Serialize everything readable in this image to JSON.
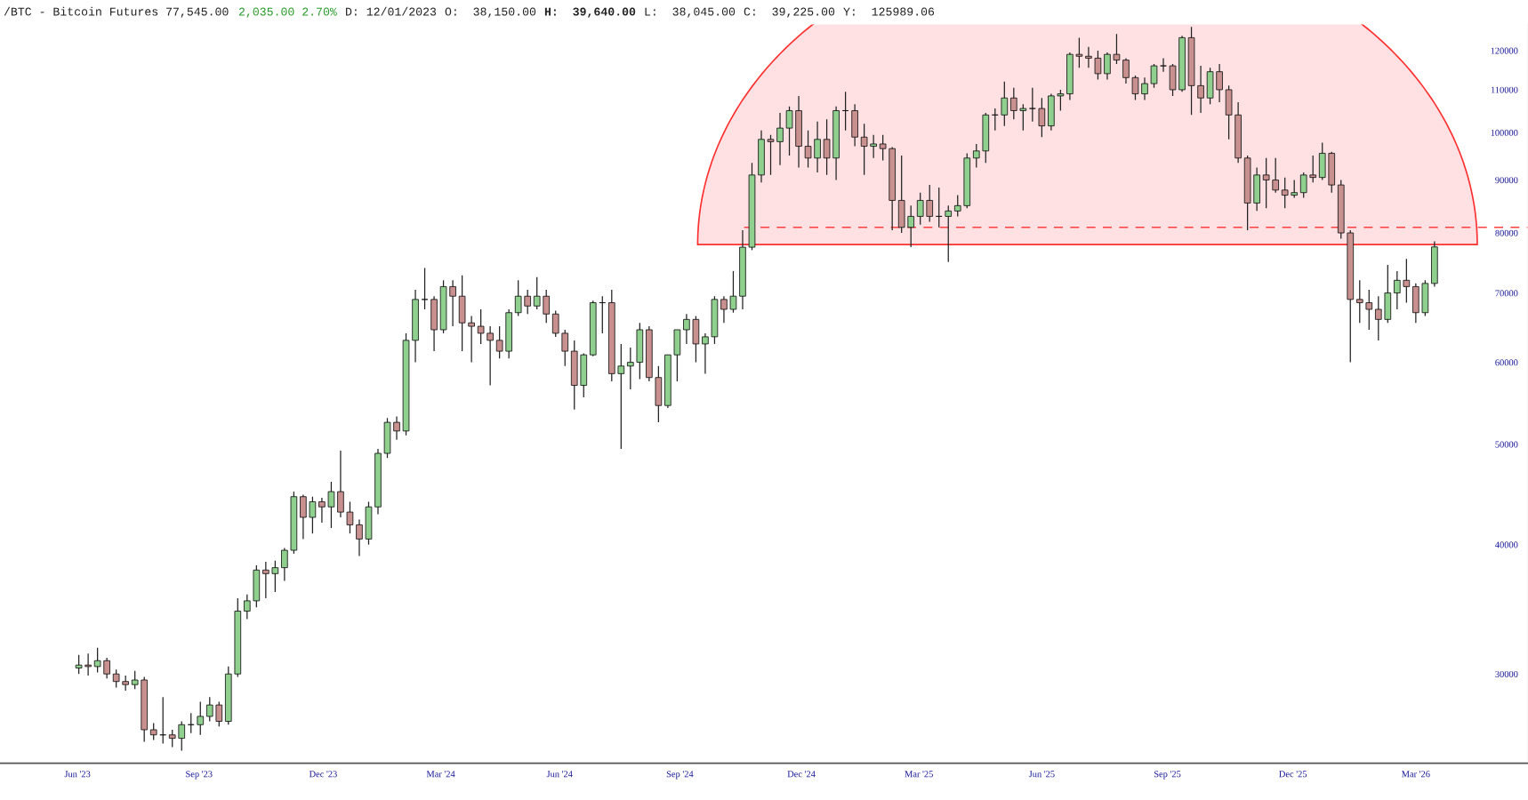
{
  "chart_data": {
    "type": "candlestick",
    "title": "/BTC - Bitcoin Futures 77,545.00",
    "annotations": [
      "2,035.00 2.70%",
      "D: 12/01/2023",
      "O:  38,150.00",
      "H:  39,640.00",
      "L:  38,045.00",
      "C:  39,225.00",
      "Y:  125989.06"
    ],
    "x": [
      "2023-06-26",
      "2023-07-03",
      "2023-07-10",
      "2023-07-17",
      "2023-07-24",
      "2023-07-31",
      "2023-08-07",
      "2023-08-14",
      "2023-08-21",
      "2023-08-28",
      "2023-09-04",
      "2023-09-11",
      "2023-09-18",
      "2023-09-25",
      "2023-10-02",
      "2023-10-09",
      "2023-10-16",
      "2023-10-23",
      "2023-10-30",
      "2023-11-06",
      "2023-11-13",
      "2023-11-20",
      "2023-11-27",
      "2023-12-04",
      "2023-12-11",
      "2023-12-18",
      "2023-12-25",
      "2024-01-01",
      "2024-01-08",
      "2024-01-15",
      "2024-01-22",
      "2024-01-29",
      "2024-02-05",
      "2024-02-12",
      "2024-02-19",
      "2024-02-26",
      "2024-03-04",
      "2024-03-11",
      "2024-03-18",
      "2024-03-25",
      "2024-04-01",
      "2024-04-08",
      "2024-04-15",
      "2024-04-22",
      "2024-04-29",
      "2024-05-06",
      "2024-05-13",
      "2024-05-20",
      "2024-05-27",
      "2024-06-03",
      "2024-06-10",
      "2024-06-17",
      "2024-06-24",
      "2024-07-01",
      "2024-07-08",
      "2024-07-15",
      "2024-07-22",
      "2024-07-29",
      "2024-08-05",
      "2024-08-12",
      "2024-08-19",
      "2024-08-26",
      "2024-09-02",
      "2024-09-09",
      "2024-09-16",
      "2024-09-23",
      "2024-09-30",
      "2024-10-07",
      "2024-10-14",
      "2024-10-21",
      "2024-10-28",
      "2024-11-04",
      "2024-11-11",
      "2024-11-18",
      "2024-11-25",
      "2024-12-02",
      "2024-12-09",
      "2024-12-16",
      "2024-12-23",
      "2024-12-30",
      "2025-01-06",
      "2025-01-13",
      "2025-01-20",
      "2025-01-27",
      "2025-02-03",
      "2025-02-10",
      "2025-02-17",
      "2025-02-24",
      "2025-03-03",
      "2025-03-10",
      "2025-03-17",
      "2025-03-24",
      "2025-03-31",
      "2025-04-07",
      "2025-04-14",
      "2025-04-21",
      "2025-04-28",
      "2025-05-05",
      "2025-05-12",
      "2025-05-19",
      "2025-05-26",
      "2025-06-02",
      "2025-06-09",
      "2025-06-16",
      "2025-06-23",
      "2025-06-30",
      "2025-07-07",
      "2025-07-14",
      "2025-07-21",
      "2025-07-28",
      "2025-08-04",
      "2025-08-11",
      "2025-08-18",
      "2025-08-25",
      "2025-09-01",
      "2025-09-08",
      "2025-09-15",
      "2025-09-22",
      "2025-09-29",
      "2025-10-06",
      "2025-10-13",
      "2025-10-20",
      "2025-10-27",
      "2025-11-03",
      "2025-11-10",
      "2025-11-17",
      "2025-11-24",
      "2025-12-01",
      "2025-12-08",
      "2025-12-15",
      "2025-12-22",
      "2025-12-29",
      "2026-01-05",
      "2026-01-12",
      "2026-01-19",
      "2026-01-26",
      "2026-02-02",
      "2026-02-09",
      "2026-02-16",
      "2026-02-23",
      "2026-03-02",
      "2026-03-09",
      "2026-03-16",
      "2026-03-23",
      "2026-03-30",
      "2026-04-06"
    ],
    "ohlc": [
      [
        30400,
        31300,
        30000,
        30600
      ],
      [
        30600,
        31400,
        29900,
        30500
      ],
      [
        30500,
        31800,
        30100,
        30900
      ],
      [
        30900,
        31100,
        29700,
        30000
      ],
      [
        30000,
        30300,
        29100,
        29500
      ],
      [
        29500,
        29900,
        28900,
        29300
      ],
      [
        29300,
        30200,
        29000,
        29600
      ],
      [
        29600,
        29800,
        25800,
        26500
      ],
      [
        26500,
        26900,
        25900,
        26200
      ],
      [
        26200,
        28500,
        25700,
        26200
      ],
      [
        26200,
        26500,
        25500,
        26000
      ],
      [
        26000,
        27000,
        25300,
        26800
      ],
      [
        26800,
        27500,
        26300,
        26800
      ],
      [
        26800,
        28200,
        26200,
        27300
      ],
      [
        27300,
        28500,
        27000,
        28000
      ],
      [
        28000,
        28200,
        26700,
        27000
      ],
      [
        27000,
        30500,
        26800,
        30000
      ],
      [
        30000,
        35500,
        29800,
        34500
      ],
      [
        34500,
        35800,
        33900,
        35300
      ],
      [
        35300,
        38200,
        34800,
        37800
      ],
      [
        37800,
        38500,
        35500,
        37500
      ],
      [
        37500,
        38600,
        36000,
        38000
      ],
      [
        38000,
        39700,
        36900,
        39500
      ],
      [
        39500,
        45000,
        39200,
        44500
      ],
      [
        44500,
        44700,
        40500,
        42500
      ],
      [
        42500,
        44500,
        41000,
        44000
      ],
      [
        44000,
        44400,
        42000,
        43500
      ],
      [
        43500,
        46000,
        41500,
        45000
      ],
      [
        45000,
        49300,
        42500,
        43000
      ],
      [
        43000,
        44000,
        41000,
        41800
      ],
      [
        41800,
        42300,
        39000,
        40500
      ],
      [
        40500,
        44000,
        40000,
        43500
      ],
      [
        43500,
        49500,
        42800,
        49000
      ],
      [
        49000,
        53000,
        48500,
        52500
      ],
      [
        52500,
        53200,
        50500,
        51500
      ],
      [
        51500,
        64000,
        51000,
        63000
      ],
      [
        63000,
        70500,
        60000,
        69000
      ],
      [
        69000,
        74000,
        67500,
        69000
      ],
      [
        69000,
        69500,
        61500,
        64500
      ],
      [
        64500,
        72000,
        64000,
        71000
      ],
      [
        71000,
        72000,
        65000,
        69500
      ],
      [
        69500,
        72800,
        61500,
        65500
      ],
      [
        65500,
        66500,
        60000,
        65000
      ],
      [
        65000,
        67500,
        62500,
        64000
      ],
      [
        64000,
        65000,
        57000,
        63000
      ],
      [
        63000,
        65000,
        60500,
        61500
      ],
      [
        61500,
        67500,
        60500,
        67000
      ],
      [
        67000,
        72000,
        66500,
        69500
      ],
      [
        69500,
        70500,
        66800,
        68000
      ],
      [
        68000,
        72500,
        67500,
        69500
      ],
      [
        69500,
        70500,
        65500,
        66800
      ],
      [
        66800,
        67300,
        63500,
        64000
      ],
      [
        64000,
        64500,
        59500,
        61500
      ],
      [
        61500,
        63000,
        54000,
        57000
      ],
      [
        57000,
        61200,
        55500,
        61000
      ],
      [
        61000,
        68800,
        60800,
        68500
      ],
      [
        68500,
        69500,
        64000,
        68500
      ],
      [
        68500,
        70500,
        57500,
        58500
      ],
      [
        58500,
        62500,
        49500,
        59500
      ],
      [
        59500,
        62000,
        56500,
        60000
      ],
      [
        60000,
        65500,
        57800,
        64500
      ],
      [
        64500,
        65000,
        57500,
        58000
      ],
      [
        58000,
        59500,
        52500,
        54500
      ],
      [
        54500,
        61000,
        54200,
        61000
      ],
      [
        61000,
        64500,
        57500,
        64500
      ],
      [
        64500,
        66800,
        62500,
        66000
      ],
      [
        66000,
        66500,
        60000,
        62500
      ],
      [
        62500,
        64000,
        58500,
        63500
      ],
      [
        63500,
        69500,
        62500,
        69000
      ],
      [
        69000,
        69500,
        65500,
        67500
      ],
      [
        67500,
        73500,
        67000,
        69500
      ],
      [
        69500,
        80500,
        67500,
        77500
      ],
      [
        77500,
        93500,
        77000,
        91000
      ],
      [
        91000,
        100500,
        89500,
        98500
      ],
      [
        98500,
        99500,
        91000,
        98000
      ],
      [
        98000,
        104500,
        93000,
        101000
      ],
      [
        101000,
        106000,
        95000,
        105000
      ],
      [
        105000,
        108500,
        92500,
        97000
      ],
      [
        97000,
        100500,
        92500,
        94500
      ],
      [
        94500,
        102500,
        91500,
        98500
      ],
      [
        98500,
        103000,
        91000,
        94500
      ],
      [
        94500,
        106000,
        90000,
        105000
      ],
      [
        105000,
        109500,
        100500,
        105000
      ],
      [
        105000,
        106500,
        97000,
        99000
      ],
      [
        99000,
        102000,
        91000,
        97000
      ],
      [
        97000,
        99500,
        94500,
        97500
      ],
      [
        97500,
        99500,
        94000,
        96500
      ],
      [
        96500,
        96800,
        80500,
        86000
      ],
      [
        86000,
        95000,
        80000,
        81000
      ],
      [
        81000,
        85000,
        77500,
        83000
      ],
      [
        83000,
        87500,
        81500,
        86000
      ],
      [
        86000,
        89000,
        82000,
        83000
      ],
      [
        83000,
        88500,
        81000,
        83000
      ],
      [
        83000,
        85000,
        75000,
        84000
      ],
      [
        84000,
        87000,
        83000,
        85000
      ],
      [
        85000,
        95500,
        84500,
        94500
      ],
      [
        94500,
        97500,
        92500,
        96000
      ],
      [
        96000,
        104500,
        93500,
        104000
      ],
      [
        104000,
        105500,
        100500,
        104000
      ],
      [
        104000,
        112000,
        101500,
        108000
      ],
      [
        108000,
        110500,
        103000,
        105000
      ],
      [
        105000,
        106500,
        100500,
        105500
      ],
      [
        105500,
        110500,
        102500,
        105500
      ],
      [
        105500,
        108000,
        99000,
        101500
      ],
      [
        101500,
        109000,
        100500,
        108500
      ],
      [
        108500,
        110000,
        105000,
        109000
      ],
      [
        109000,
        119500,
        107500,
        119000
      ],
      [
        119000,
        123500,
        115500,
        118500
      ],
      [
        118500,
        121000,
        115500,
        118000
      ],
      [
        118000,
        120000,
        112500,
        114000
      ],
      [
        114000,
        119500,
        112500,
        119000
      ],
      [
        119000,
        124500,
        116500,
        117500
      ],
      [
        117500,
        118000,
        111500,
        113000
      ],
      [
        113000,
        113500,
        107500,
        109000
      ],
      [
        109000,
        113000,
        107500,
        111500
      ],
      [
        111500,
        116500,
        110500,
        116000
      ],
      [
        116000,
        118000,
        114500,
        116000
      ],
      [
        116000,
        116500,
        108500,
        110000
      ],
      [
        110000,
        124000,
        109500,
        123500
      ],
      [
        123500,
        126500,
        104000,
        111000
      ],
      [
        111000,
        116000,
        104500,
        108000
      ],
      [
        108000,
        115500,
        106500,
        114500
      ],
      [
        114500,
        116500,
        107000,
        110000
      ],
      [
        110000,
        111000,
        98500,
        104000
      ],
      [
        104000,
        107000,
        93500,
        94500
      ],
      [
        94500,
        95000,
        80500,
        85500
      ],
      [
        85500,
        92500,
        84000,
        91000
      ],
      [
        91000,
        94500,
        84500,
        90000
      ],
      [
        90000,
        94500,
        87500,
        88000
      ],
      [
        88000,
        90500,
        84500,
        87000
      ],
      [
        87000,
        90000,
        86500,
        87500
      ],
      [
        87500,
        91500,
        86500,
        91000
      ],
      [
        91000,
        95000,
        89500,
        90500
      ],
      [
        90500,
        97800,
        90000,
        95500
      ],
      [
        95500,
        95800,
        87500,
        89000
      ],
      [
        89000,
        90000,
        79000,
        80000
      ],
      [
        80000,
        80500,
        60000,
        69000
      ],
      [
        69000,
        72000,
        65500,
        68500
      ],
      [
        68500,
        70500,
        64500,
        67500
      ],
      [
        67500,
        69500,
        63000,
        66000
      ],
      [
        66000,
        74500,
        65500,
        70000
      ],
      [
        70000,
        73500,
        67500,
        72000
      ],
      [
        72000,
        75500,
        68500,
        71000
      ],
      [
        71000,
        71500,
        65500,
        67000
      ],
      [
        67000,
        72000,
        66500,
        71500
      ],
      [
        71500,
        78500,
        71000,
        77545
      ]
    ],
    "log": "y",
    "ylim": [
      24600,
      127200
    ],
    "yticks": [
      30000,
      40000,
      50000,
      60000,
      70000,
      80000,
      90000,
      100000,
      110000,
      120000
    ],
    "xlim": [
      "2023-04-28",
      "2026-06-15"
    ],
    "xticks": [
      {
        "value": "2023-06-25",
        "label": "Jun '23"
      },
      {
        "value": "2023-09-24",
        "label": "Sep '23"
      },
      {
        "value": "2023-12-26",
        "label": "Dec '23"
      },
      {
        "value": "2024-03-23",
        "label": "Mar '24"
      },
      {
        "value": "2024-06-20",
        "label": "Jun '24"
      },
      {
        "value": "2024-09-18",
        "label": "Sep '24"
      },
      {
        "value": "2024-12-18",
        "label": "Dec '24"
      },
      {
        "value": "2025-03-16",
        "label": "Mar '25"
      },
      {
        "value": "2025-06-16",
        "label": "Jun '25"
      },
      {
        "value": "2025-09-18",
        "label": "Sep '25"
      },
      {
        "value": "2025-12-21",
        "label": "Dec '25"
      },
      {
        "value": "2026-03-23",
        "label": "Mar '26"
      }
    ],
    "ref_lines": [
      {
        "axis": "y",
        "value": 81000,
        "color": "#ff4040",
        "line_style": "dashed"
      }
    ],
    "grid": false,
    "legend": false
  }
}
